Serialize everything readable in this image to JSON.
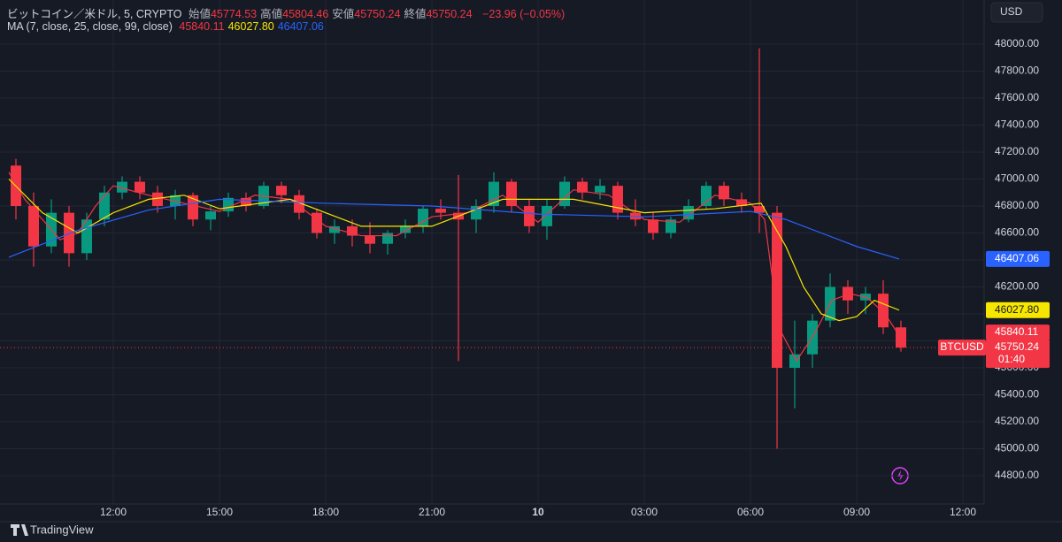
{
  "chart_data": {
    "type": "candlestick",
    "title": "ビットコイン／米ドル, 5, CRYPTO",
    "ohlc_legend": [
      {
        "label": "始値",
        "value": 45774.53
      },
      {
        "label": "高値",
        "value": 45804.46
      },
      {
        "label": "安値",
        "value": 45750.24
      },
      {
        "label": "終値",
        "value": 45750.24
      }
    ],
    "change": "−23.96 (−0.05%)",
    "ma_legend": "MA (7, close, 25, close, 99, close)",
    "currency": "USD",
    "symbol": "BTCUSD",
    "countdown": "01:40",
    "brand": "TradingView",
    "up_color": "#089981",
    "down_color": "#f23645",
    "x": [
      9.25,
      9.75,
      10.25,
      10.75,
      11.25,
      11.75,
      12.25,
      12.75,
      13.25,
      13.75,
      14.25,
      14.75,
      15.25,
      15.75,
      16.25,
      16.75,
      17.25,
      17.75,
      18.25,
      18.75,
      19.25,
      19.75,
      20.25,
      20.75,
      21.25,
      21.75,
      22.25,
      22.75,
      23.25,
      23.75,
      24.25,
      24.75,
      25.25,
      25.75,
      26.25,
      26.75,
      27.25,
      27.75,
      28.25,
      28.75,
      29.25,
      29.75,
      30.25,
      30.75,
      31.25,
      31.75,
      32.25,
      32.75,
      33.25,
      33.75,
      34.25
    ],
    "open": [
      47100,
      46800,
      46500,
      46750,
      46450,
      46700,
      46900,
      46980,
      46900,
      46800,
      46880,
      46700,
      46760,
      46860,
      46800,
      46950,
      46880,
      46750,
      46600,
      46650,
      46580,
      46520,
      46600,
      46650,
      46780,
      46750,
      46700,
      46800,
      46980,
      46800,
      46650,
      46800,
      46980,
      46900,
      46950,
      46750,
      46700,
      46600,
      46700,
      46800,
      46950,
      46850,
      46800,
      46750,
      45600,
      45700,
      45950,
      46200,
      46100,
      46150,
      45900
    ],
    "high": [
      47150,
      46900,
      46850,
      46800,
      46750,
      46950,
      47020,
      47020,
      46950,
      46920,
      46900,
      46800,
      46900,
      46900,
      46980,
      46980,
      46920,
      46780,
      46700,
      46700,
      46680,
      46620,
      46700,
      46800,
      46850,
      47030,
      46850,
      47050,
      47000,
      46850,
      46850,
      47020,
      47010,
      47000,
      46980,
      46850,
      46750,
      46720,
      46850,
      46980,
      46980,
      46900,
      47970,
      46800,
      45950,
      46000,
      46300,
      46250,
      46200,
      46250,
      45950
    ],
    "low": [
      46700,
      46350,
      46450,
      46350,
      46400,
      46650,
      46850,
      46850,
      46750,
      46700,
      46650,
      46620,
      46720,
      46760,
      46780,
      46820,
      46700,
      46560,
      46520,
      46500,
      46450,
      46440,
      46560,
      46600,
      46700,
      45650,
      46600,
      46750,
      46750,
      46600,
      46550,
      46780,
      46850,
      46850,
      46700,
      46650,
      46550,
      46560,
      46680,
      46780,
      46800,
      46750,
      46600,
      45000,
      45300,
      45600,
      45900,
      46000,
      46000,
      45850,
      45720
    ],
    "close": [
      46800,
      46500,
      46750,
      46450,
      46700,
      46900,
      46980,
      46900,
      46800,
      46880,
      46700,
      46760,
      46860,
      46800,
      46950,
      46880,
      46750,
      46600,
      46650,
      46580,
      46520,
      46600,
      46650,
      46780,
      46750,
      46700,
      46800,
      46980,
      46800,
      46650,
      46800,
      46980,
      46900,
      46950,
      46750,
      46700,
      46600,
      46700,
      46800,
      46950,
      46850,
      46800,
      46750,
      45600,
      45700,
      45950,
      46200,
      46100,
      46150,
      45900,
      45750
    ],
    "ma": [
      {
        "color": "#f23645",
        "value_label": "45840.11",
        "x": [
          9.05,
          9.5,
          10,
          10.5,
          11,
          11.5,
          12,
          13,
          14,
          15,
          16,
          17,
          18,
          19,
          20,
          21,
          22,
          23,
          24,
          25,
          26,
          27,
          28,
          29,
          30,
          30.4,
          30.8,
          31.3,
          31.8,
          32.3,
          32.8,
          33.3,
          33.8,
          34.2
        ],
        "values": [
          47050,
          46850,
          46700,
          46550,
          46600,
          46800,
          46950,
          46880,
          46820,
          46760,
          46880,
          46850,
          46650,
          46580,
          46580,
          46720,
          46750,
          46880,
          46680,
          46920,
          46880,
          46700,
          46680,
          46880,
          46820,
          46700,
          45900,
          45650,
          45850,
          46100,
          46150,
          46120,
          46000,
          45840.11
        ]
      },
      {
        "color": "#f7e600",
        "value_label": "46027.80",
        "x": [
          9.05,
          10,
          11,
          12,
          13,
          14,
          15,
          17,
          19,
          21,
          23,
          25,
          27,
          29,
          30.3,
          31,
          31.5,
          32,
          32.5,
          33,
          33.5,
          34.2
        ],
        "values": [
          47000,
          46750,
          46600,
          46750,
          46850,
          46880,
          46780,
          46850,
          46650,
          46650,
          46850,
          46850,
          46750,
          46780,
          46820,
          46500,
          46200,
          46000,
          45950,
          45980,
          46100,
          46027.8
        ]
      },
      {
        "color": "#2962ff",
        "value_label": "46407.06",
        "x": [
          9.05,
          11,
          13,
          15,
          18,
          21,
          24,
          27,
          30,
          31,
          32,
          33,
          34.2
        ],
        "values": [
          46420,
          46620,
          46770,
          46850,
          46820,
          46800,
          46740,
          46720,
          46760,
          46700,
          46600,
          46500,
          46407.06
        ]
      }
    ],
    "xlim": [
      8.8,
      36.6
    ],
    "xticks": [
      {
        "value": 12,
        "label": "12:00"
      },
      {
        "value": 15,
        "label": "15:00"
      },
      {
        "value": 18,
        "label": "18:00"
      },
      {
        "value": 21,
        "label": "21:00"
      },
      {
        "value": 24,
        "label": "10"
      },
      {
        "value": 27,
        "label": "03:00"
      },
      {
        "value": 30,
        "label": "06:00"
      },
      {
        "value": 33,
        "label": "09:00"
      },
      {
        "value": 36,
        "label": "12:00"
      }
    ],
    "ylim": [
      44590,
      48328
    ],
    "yticks": [
      {
        "value": 44800,
        "label": "44800.00"
      },
      {
        "value": 45000,
        "label": "45000.00"
      },
      {
        "value": 45200,
        "label": "45200.00"
      },
      {
        "value": 45400,
        "label": "45400.00"
      },
      {
        "value": 45600,
        "label": "45600.00"
      },
      {
        "value": 45800,
        "label": "45800.00"
      },
      {
        "value": 46000,
        "label": "46000.00"
      },
      {
        "value": 46200,
        "label": "46200.00"
      },
      {
        "value": 46400,
        "label": "46400.00"
      },
      {
        "value": 46600,
        "label": "46600.00"
      },
      {
        "value": 46800,
        "label": "46800.00"
      },
      {
        "value": 47000,
        "label": "47000.00"
      },
      {
        "value": 47200,
        "label": "47200.00"
      },
      {
        "value": 47400,
        "label": "47400.00"
      },
      {
        "value": 47600,
        "label": "47600.00"
      },
      {
        "value": 47800,
        "label": "47800.00"
      },
      {
        "value": 48000,
        "label": "48000.00"
      }
    ],
    "grid": true
  }
}
